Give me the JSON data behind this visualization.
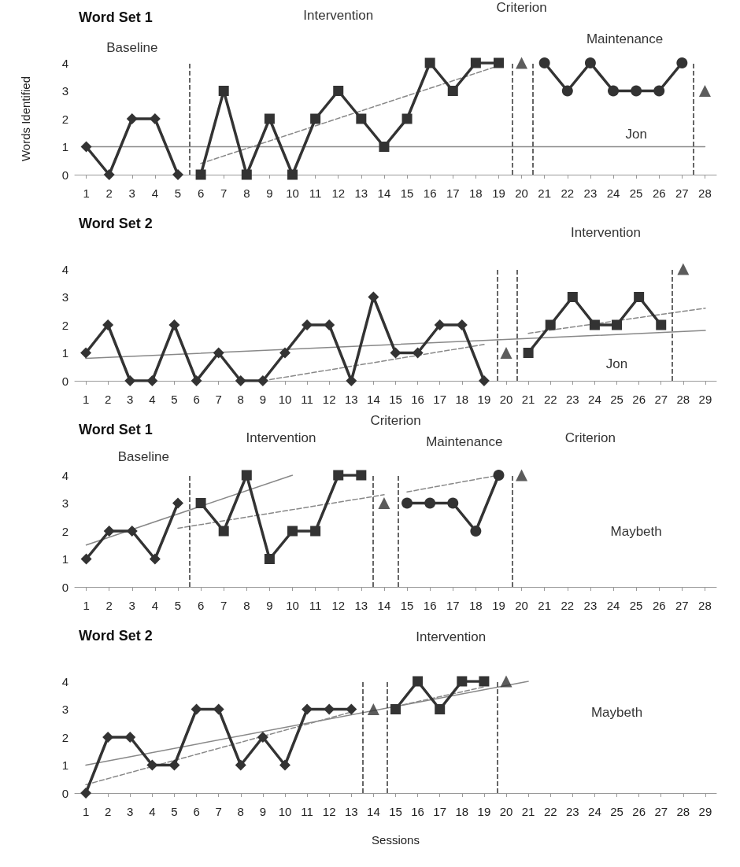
{
  "chart_data": [
    {
      "type": "line",
      "title": "Word Set 1",
      "ylabel": "Words Identified",
      "xlim": [
        0.5,
        28.5
      ],
      "xticks": [
        1,
        2,
        3,
        4,
        5,
        6,
        7,
        8,
        9,
        10,
        11,
        12,
        13,
        14,
        15,
        16,
        17,
        18,
        19,
        20,
        21,
        22,
        23,
        24,
        25,
        26,
        27,
        28
      ],
      "ylim": [
        0,
        4
      ],
      "yticks": [
        0,
        1,
        2,
        3,
        4
      ],
      "grid": false,
      "annotations": [
        "Baseline",
        "Intervention",
        "Criterion",
        "Maintenance",
        "Jon"
      ],
      "ref_lines": [
        {
          "axis": "x",
          "value": 5.5,
          "color": "#333333",
          "line_style": "dashed"
        },
        {
          "axis": "x",
          "value": 19.6,
          "color": "#333333",
          "line_style": "dashed"
        },
        {
          "axis": "x",
          "value": 20.5,
          "color": "#333333",
          "line_style": "dashed"
        },
        {
          "axis": "x",
          "value": 27.5,
          "color": "#333333",
          "line_style": "dashed"
        }
      ],
      "series": [
        {
          "color": "#888888",
          "marker": "none",
          "line_style": "solid",
          "x": [
            1,
            28
          ],
          "values": [
            1,
            1
          ]
        },
        {
          "color": "#888888",
          "marker": "none",
          "line_style": "dashed",
          "x": [
            6,
            19
          ],
          "values": [
            0.4,
            3.9
          ]
        },
        {
          "color": "#333333",
          "marker": "diamond",
          "line_style": "solid",
          "x": [
            1,
            2,
            3,
            4,
            5
          ],
          "values": [
            1,
            0,
            2,
            2,
            0
          ]
        },
        {
          "color": "#333333",
          "marker": "square",
          "line_style": "solid",
          "x": [
            6,
            7,
            8,
            9,
            10,
            11,
            12,
            13,
            14,
            15,
            16,
            17,
            18,
            19
          ],
          "values": [
            0,
            3,
            0,
            2,
            0,
            2,
            3,
            2,
            1,
            2,
            4,
            3,
            4,
            4
          ]
        },
        {
          "type": "scatter",
          "color": "#333333",
          "marker": "triangle",
          "x": [
            20,
            28
          ],
          "values": [
            4,
            3
          ]
        },
        {
          "color": "#333333",
          "marker": "circle",
          "line_style": "solid",
          "x": [
            21,
            22,
            23,
            24,
            25,
            26,
            27
          ],
          "values": [
            4,
            3,
            4,
            3,
            3,
            3,
            4
          ]
        }
      ]
    },
    {
      "type": "line",
      "title": "Word Set 2",
      "xlim": [
        0.5,
        29.5
      ],
      "xticks": [
        1,
        2,
        3,
        4,
        5,
        6,
        7,
        8,
        9,
        10,
        11,
        12,
        13,
        14,
        15,
        16,
        17,
        18,
        19,
        20,
        21,
        22,
        23,
        24,
        25,
        26,
        27,
        28,
        29
      ],
      "ylim": [
        0,
        4
      ],
      "yticks": [
        0,
        1,
        2,
        3,
        4
      ],
      "grid": false,
      "annotations": [
        "Intervention",
        "Jon"
      ],
      "ref_lines": [
        {
          "axis": "x",
          "value": 19.6,
          "color": "#333333",
          "line_style": "dashed"
        },
        {
          "axis": "x",
          "value": 20.5,
          "color": "#333333",
          "line_style": "dashed"
        },
        {
          "axis": "x",
          "value": 27.5,
          "color": "#333333",
          "line_style": "dashed"
        }
      ],
      "series": [
        {
          "color": "#888888",
          "marker": "none",
          "line_style": "solid",
          "x": [
            1,
            29
          ],
          "values": [
            0.8,
            1.8
          ]
        },
        {
          "color": "#888888",
          "marker": "none",
          "line_style": "dashed",
          "x": [
            9,
            19
          ],
          "values": [
            0,
            1.3
          ]
        },
        {
          "color": "#888888",
          "marker": "none",
          "line_style": "dashed",
          "x": [
            21,
            29
          ],
          "values": [
            1.7,
            2.6
          ]
        },
        {
          "color": "#333333",
          "marker": "diamond",
          "line_style": "solid",
          "x": [
            1,
            2,
            3,
            4,
            5,
            6,
            7,
            8,
            9,
            10,
            11,
            12,
            13,
            14,
            15,
            16,
            17,
            18,
            19
          ],
          "values": [
            1,
            2,
            0,
            0,
            2,
            0,
            1,
            0,
            0,
            1,
            2,
            2,
            0,
            3,
            1,
            1,
            2,
            2,
            0
          ]
        },
        {
          "type": "scatter",
          "color": "#333333",
          "marker": "triangle",
          "x": [
            20,
            28
          ],
          "values": [
            1,
            4
          ]
        },
        {
          "color": "#333333",
          "marker": "square",
          "line_style": "solid",
          "x": [
            21,
            22,
            23,
            24,
            25,
            26,
            27
          ],
          "values": [
            1,
            2,
            3,
            2,
            2,
            3,
            2
          ]
        }
      ]
    },
    {
      "type": "line",
      "title": "Word Set 1",
      "xlim": [
        0.5,
        28.5
      ],
      "xticks": [
        1,
        2,
        3,
        4,
        5,
        6,
        7,
        8,
        9,
        10,
        11,
        12,
        13,
        14,
        15,
        16,
        17,
        18,
        19,
        20,
        21,
        22,
        23,
        24,
        25,
        26,
        27,
        28
      ],
      "ylim": [
        0,
        4
      ],
      "yticks": [
        0,
        1,
        2,
        3,
        4
      ],
      "grid": false,
      "annotations": [
        "Intervention",
        "Criterion",
        "Maintenance",
        "Criterion",
        "Baseline",
        "Maybeth"
      ],
      "ref_lines": [
        {
          "axis": "x",
          "value": 5.5,
          "color": "#333333",
          "line_style": "dashed"
        },
        {
          "axis": "x",
          "value": 13.5,
          "color": "#333333",
          "line_style": "dashed"
        },
        {
          "axis": "x",
          "value": 14.6,
          "color": "#333333",
          "line_style": "dashed"
        },
        {
          "axis": "x",
          "value": 19.6,
          "color": "#333333",
          "line_style": "dashed"
        }
      ],
      "series": [
        {
          "color": "#888888",
          "marker": "none",
          "line_style": "solid",
          "x": [
            1,
            10
          ],
          "values": [
            1.5,
            4
          ]
        },
        {
          "color": "#888888",
          "marker": "none",
          "line_style": "dashed",
          "x": [
            5,
            14
          ],
          "values": [
            2.1,
            3.3
          ]
        },
        {
          "color": "#888888",
          "marker": "none",
          "line_style": "dashed",
          "x": [
            15,
            19
          ],
          "values": [
            3.4,
            4
          ]
        },
        {
          "color": "#333333",
          "marker": "diamond",
          "line_style": "solid",
          "x": [
            1,
            2,
            3,
            4,
            5
          ],
          "values": [
            1,
            2,
            2,
            1,
            3
          ]
        },
        {
          "color": "#333333",
          "marker": "square",
          "line_style": "solid",
          "x": [
            6,
            7,
            8,
            9,
            10,
            11,
            12,
            13
          ],
          "values": [
            3,
            2,
            4,
            1,
            2,
            2,
            4,
            4
          ]
        },
        {
          "type": "scatter",
          "color": "#333333",
          "marker": "triangle",
          "x": [
            14,
            20
          ],
          "values": [
            3,
            4
          ]
        },
        {
          "color": "#333333",
          "marker": "circle",
          "line_style": "solid",
          "x": [
            15,
            16,
            17,
            18,
            19
          ],
          "values": [
            3,
            3,
            3,
            2,
            4
          ]
        }
      ]
    },
    {
      "type": "line",
      "title": "Word Set 2",
      "xlabel": "Sessions",
      "xlim": [
        0.5,
        29.5
      ],
      "xticks": [
        1,
        2,
        3,
        4,
        5,
        6,
        7,
        8,
        9,
        10,
        11,
        12,
        13,
        14,
        15,
        16,
        17,
        18,
        19,
        20,
        21,
        22,
        23,
        24,
        25,
        26,
        27,
        28,
        29
      ],
      "ylim": [
        0,
        4
      ],
      "yticks": [
        0,
        1,
        2,
        3,
        4
      ],
      "grid": false,
      "annotations": [
        "Intervention",
        "Maybeth"
      ],
      "ref_lines": [
        {
          "axis": "x",
          "value": 13.5,
          "color": "#333333",
          "line_style": "dashed"
        },
        {
          "axis": "x",
          "value": 14.6,
          "color": "#333333",
          "line_style": "dashed"
        },
        {
          "axis": "x",
          "value": 19.6,
          "color": "#333333",
          "line_style": "dashed"
        }
      ],
      "series": [
        {
          "color": "#888888",
          "marker": "none",
          "line_style": "solid",
          "x": [
            1,
            21
          ],
          "values": [
            1,
            4
          ]
        },
        {
          "color": "#888888",
          "marker": "none",
          "line_style": "dashed",
          "x": [
            1,
            13
          ],
          "values": [
            0.3,
            2.9
          ]
        },
        {
          "color": "#888888",
          "marker": "none",
          "line_style": "dashed",
          "x": [
            15,
            19
          ],
          "values": [
            3.1,
            3.8
          ]
        },
        {
          "color": "#333333",
          "marker": "diamond",
          "line_style": "solid",
          "x": [
            1,
            2,
            3,
            4,
            5,
            6,
            7,
            8,
            9,
            10,
            11,
            12,
            13
          ],
          "values": [
            0,
            2,
            2,
            1,
            1,
            3,
            3,
            1,
            2,
            1,
            3,
            3,
            3
          ]
        },
        {
          "type": "scatter",
          "color": "#333333",
          "marker": "triangle",
          "x": [
            14,
            20
          ],
          "values": [
            3,
            4
          ]
        },
        {
          "color": "#333333",
          "marker": "square",
          "line_style": "solid",
          "x": [
            15,
            16,
            17,
            18,
            19
          ],
          "values": [
            3,
            4,
            3,
            4,
            4
          ]
        }
      ]
    }
  ]
}
